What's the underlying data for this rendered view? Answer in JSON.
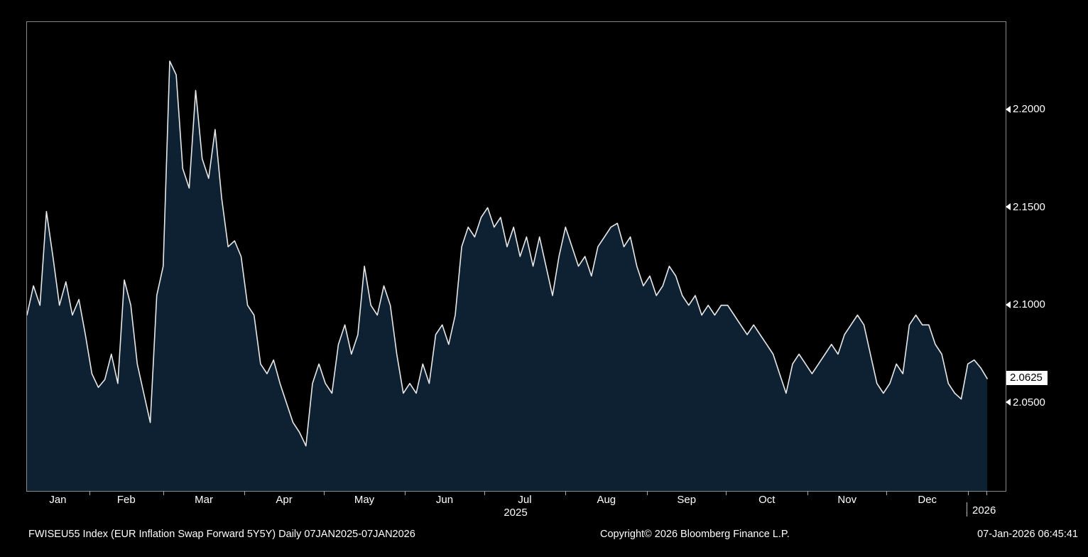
{
  "footer": {
    "left": "FWISEU55 Index (EUR Inflation Swap Forward 5Y5Y) Daily 07JAN2025-07JAN2026",
    "center": "Copyright© 2026 Bloomberg Finance L.P.",
    "right": "07-Jan-2026 06:45:41"
  },
  "colors": {
    "background": "#000000",
    "area_fill": "#0e2133",
    "line": "#e8e8e8",
    "frame": "#8a8a8a",
    "axis_text": "#ffffff",
    "last_price_bg": "#ffffff",
    "last_price_text": "#000000"
  },
  "chart_data": {
    "type": "area",
    "title": "FWISEU55 Index (EUR Inflation Swap Forward 5Y5Y)",
    "subtitle": "Daily 07JAN2025-07JAN2026",
    "x_tick_labels": [
      "Jan",
      "Feb",
      "Mar",
      "Apr",
      "May",
      "Jun",
      "Jul",
      "Aug",
      "Sep",
      "Oct",
      "Nov",
      "Dec"
    ],
    "x_year_labels": [
      "2025",
      "2026"
    ],
    "y_ticks": [
      2.2,
      2.15,
      2.1,
      2.05
    ],
    "y_tick_labels": [
      "2.2000",
      "2.1500",
      "2.1000",
      "2.0500"
    ],
    "last_price": 2.0625,
    "last_price_label": "2.0625",
    "ylim": [
      2.005,
      2.245
    ],
    "xlabel": "",
    "ylabel": "",
    "legend": "none",
    "grid": false,
    "month_days": [
      24,
      28,
      31,
      30,
      31,
      30,
      31,
      31,
      30,
      31,
      30,
      31,
      7
    ],
    "axis_total_days": 372,
    "data_end_day": 365,
    "values": [
      2.095,
      2.11,
      2.1,
      2.148,
      2.125,
      2.1,
      2.112,
      2.095,
      2.103,
      2.085,
      2.065,
      2.058,
      2.062,
      2.075,
      2.06,
      2.113,
      2.1,
      2.07,
      2.055,
      2.04,
      2.105,
      2.12,
      2.225,
      2.218,
      2.17,
      2.16,
      2.21,
      2.175,
      2.165,
      2.19,
      2.155,
      2.13,
      2.133,
      2.125,
      2.1,
      2.095,
      2.07,
      2.065,
      2.072,
      2.06,
      2.05,
      2.04,
      2.035,
      2.028,
      2.06,
      2.07,
      2.06,
      2.055,
      2.08,
      2.09,
      2.075,
      2.085,
      2.12,
      2.1,
      2.095,
      2.11,
      2.1,
      2.075,
      2.055,
      2.06,
      2.055,
      2.07,
      2.06,
      2.085,
      2.09,
      2.08,
      2.095,
      2.13,
      2.14,
      2.135,
      2.145,
      2.15,
      2.14,
      2.145,
      2.13,
      2.14,
      2.125,
      2.135,
      2.12,
      2.135,
      2.12,
      2.105,
      2.125,
      2.14,
      2.13,
      2.12,
      2.125,
      2.115,
      2.13,
      2.135,
      2.14,
      2.142,
      2.13,
      2.135,
      2.12,
      2.11,
      2.115,
      2.105,
      2.11,
      2.12,
      2.115,
      2.105,
      2.1,
      2.105,
      2.095,
      2.1,
      2.095,
      2.1,
      2.1,
      2.095,
      2.09,
      2.085,
      2.09,
      2.085,
      2.08,
      2.075,
      2.065,
      2.055,
      2.07,
      2.075,
      2.07,
      2.065,
      2.07,
      2.075,
      2.08,
      2.075,
      2.085,
      2.09,
      2.095,
      2.09,
      2.075,
      2.06,
      2.055,
      2.06,
      2.07,
      2.065,
      2.09,
      2.095,
      2.09,
      2.09,
      2.08,
      2.075,
      2.06,
      2.055,
      2.052,
      2.07,
      2.072,
      2.068,
      2.0625
    ]
  }
}
